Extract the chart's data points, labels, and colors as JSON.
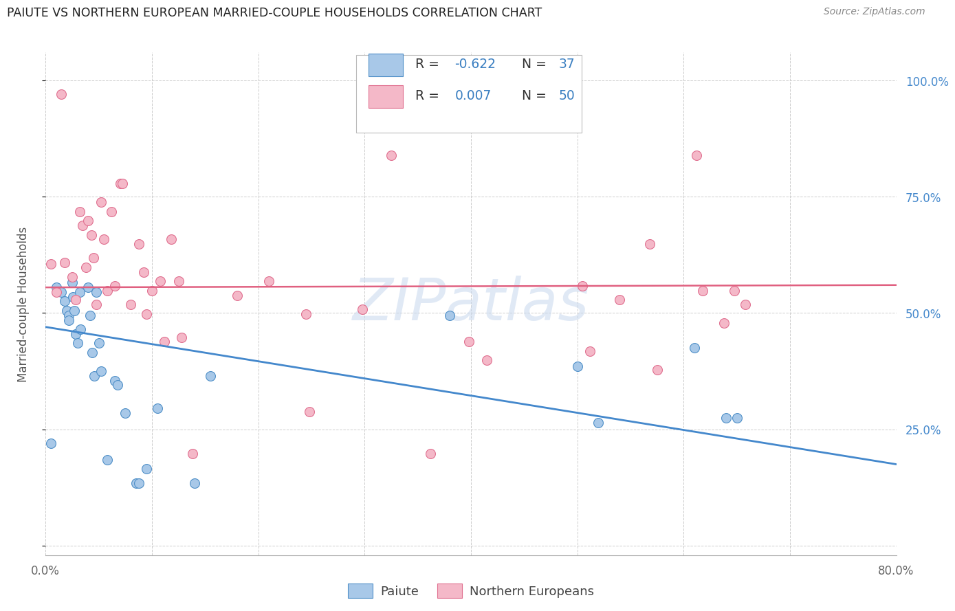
{
  "title": "PAIUTE VS NORTHERN EUROPEAN MARRIED-COUPLE HOUSEHOLDS CORRELATION CHART",
  "source": "Source: ZipAtlas.com",
  "ylabel": "Married-couple Households",
  "xlim": [
    0.0,
    0.8
  ],
  "ylim": [
    -0.02,
    1.06
  ],
  "color_paiute": "#a8c8e8",
  "color_northern": "#f4b8c8",
  "color_paiute_edge": "#5090c8",
  "color_northern_edge": "#e07090",
  "color_paiute_line": "#4488cc",
  "color_northern_line": "#e06080",
  "background_color": "#ffffff",
  "grid_color": "#cccccc",
  "right_tick_color": "#4488cc",
  "paiute_x": [
    0.005,
    0.01,
    0.015,
    0.018,
    0.02,
    0.022,
    0.022,
    0.025,
    0.026,
    0.027,
    0.028,
    0.03,
    0.032,
    0.033,
    0.04,
    0.042,
    0.044,
    0.046,
    0.048,
    0.05,
    0.052,
    0.058,
    0.065,
    0.068,
    0.075,
    0.085,
    0.088,
    0.095,
    0.105,
    0.14,
    0.155,
    0.38,
    0.5,
    0.52,
    0.61,
    0.64,
    0.65
  ],
  "paiute_y": [
    0.22,
    0.555,
    0.545,
    0.525,
    0.505,
    0.495,
    0.485,
    0.565,
    0.535,
    0.505,
    0.455,
    0.435,
    0.545,
    0.465,
    0.555,
    0.495,
    0.415,
    0.365,
    0.545,
    0.435,
    0.375,
    0.185,
    0.355,
    0.345,
    0.285,
    0.135,
    0.135,
    0.165,
    0.295,
    0.135,
    0.365,
    0.495,
    0.385,
    0.265,
    0.425,
    0.275,
    0.275
  ],
  "northern_x": [
    0.005,
    0.01,
    0.015,
    0.018,
    0.025,
    0.028,
    0.032,
    0.035,
    0.038,
    0.04,
    0.043,
    0.045,
    0.048,
    0.052,
    0.055,
    0.058,
    0.062,
    0.065,
    0.07,
    0.072,
    0.08,
    0.088,
    0.092,
    0.095,
    0.1,
    0.108,
    0.112,
    0.118,
    0.125,
    0.128,
    0.138,
    0.18,
    0.21,
    0.245,
    0.248,
    0.298,
    0.325,
    0.362,
    0.398,
    0.415,
    0.505,
    0.512,
    0.54,
    0.568,
    0.575,
    0.612,
    0.618,
    0.638,
    0.648,
    0.658
  ],
  "northern_y": [
    0.605,
    0.545,
    0.97,
    0.608,
    0.578,
    0.528,
    0.718,
    0.688,
    0.598,
    0.698,
    0.668,
    0.618,
    0.518,
    0.738,
    0.658,
    0.548,
    0.718,
    0.558,
    0.778,
    0.778,
    0.518,
    0.648,
    0.588,
    0.498,
    0.548,
    0.568,
    0.438,
    0.658,
    0.568,
    0.448,
    0.198,
    0.538,
    0.568,
    0.498,
    0.288,
    0.508,
    0.838,
    0.198,
    0.438,
    0.398,
    0.558,
    0.418,
    0.528,
    0.648,
    0.378,
    0.838,
    0.548,
    0.478,
    0.548,
    0.518
  ],
  "paiute_line_x": [
    0.0,
    0.8
  ],
  "paiute_line_y": [
    0.47,
    0.175
  ],
  "northern_line_x": [
    0.0,
    0.8
  ],
  "northern_line_y": [
    0.555,
    0.56
  ],
  "xticks": [
    0.0,
    0.1,
    0.2,
    0.3,
    0.4,
    0.5,
    0.6,
    0.7,
    0.8
  ],
  "xtick_labels": [
    "0.0%",
    "",
    "",
    "",
    "",
    "",
    "",
    "",
    "80.0%"
  ],
  "yticks": [
    0.0,
    0.25,
    0.5,
    0.75,
    1.0
  ],
  "right_ytick_labels": [
    "25.0%",
    "50.0%",
    "75.0%",
    "100.0%"
  ],
  "right_ytick_values": [
    0.25,
    0.5,
    0.75,
    1.0
  ]
}
